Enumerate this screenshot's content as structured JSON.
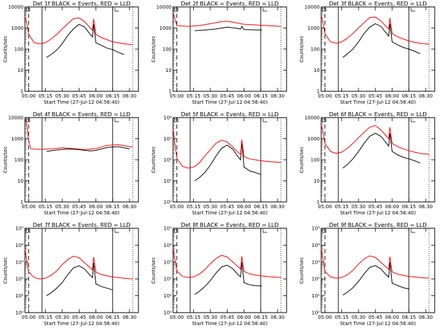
{
  "chart_data": [
    {
      "title": "Det 1f BLACK = Events, RED = LLD",
      "type": "line",
      "ylabel": "Counts/sec",
      "xlabel": "Start Time (27-Jul-12 04:56:40)",
      "x_ticks": [
        "05:00",
        "05:15",
        "05:30",
        "05:45",
        "06:00",
        "06:15",
        "06:30"
      ],
      "y_ticks": [
        "1",
        "10",
        "100",
        "1000",
        "10000"
      ],
      "ylim": [
        1,
        10000
      ],
      "yscale": "log",
      "xlim": [
        "04:56:40",
        "06:38"
      ],
      "series": [
        {
          "color": "#000000",
          "x": [
            "05:16",
            "05:20",
            "05:25",
            "05:30",
            "05:35",
            "05:40",
            "05:45",
            "05:50",
            "05:55",
            "05:57",
            "05:58",
            "06:00",
            "06:05",
            "06:10",
            "06:15",
            "06:20",
            "06:25"
          ],
          "values": [
            40,
            55,
            90,
            180,
            450,
            900,
            1500,
            1100,
            500,
            380,
            1500,
            200,
            150,
            110,
            95,
            70,
            55
          ]
        },
        {
          "color": "#ff0000",
          "x": [
            "04:56:40",
            "04:58",
            "05:00",
            "05:05",
            "05:10",
            "05:15",
            "05:20",
            "05:25",
            "05:30",
            "05:35",
            "05:40",
            "05:45",
            "05:50",
            "05:55",
            "05:57",
            "05:58",
            "06:00",
            "06:05",
            "06:10",
            "06:15",
            "06:20",
            "06:25",
            "06:33"
          ],
          "values": [
            3500,
            2000,
            500,
            200,
            180,
            200,
            300,
            500,
            900,
            1600,
            2800,
            3000,
            2000,
            1000,
            800,
            2700,
            500,
            350,
            280,
            220,
            200,
            180,
            160
          ]
        }
      ]
    },
    {
      "title": "Det 2f BLACK = Events, RED = LLD",
      "type": "line",
      "ylabel": "Counts/sec",
      "xlabel": "Start Time (27-Jul-12 04:56:40)",
      "x_ticks": [
        "05:00",
        "05:15",
        "05:30",
        "05:45",
        "06:00",
        "06:15",
        "06:30"
      ],
      "y_ticks": [
        "1",
        "10",
        "100",
        "1000",
        "10000"
      ],
      "ylim": [
        1,
        10000
      ],
      "yscale": "log",
      "xlim": [
        "04:56:40",
        "06:38"
      ],
      "series": [
        {
          "color": "#000000",
          "x": [
            "05:16",
            "05:25",
            "05:35",
            "05:45",
            "05:55",
            "05:57",
            "05:58",
            "06:00",
            "06:10",
            "06:16"
          ],
          "values": [
            750,
            800,
            900,
            1100,
            950,
            900,
            1200,
            850,
            820,
            800
          ]
        },
        {
          "color": "#ff0000",
          "x": [
            "04:56:40",
            "04:58",
            "05:00",
            "05:10",
            "05:20",
            "05:30",
            "05:40",
            "05:45",
            "05:50",
            "06:00",
            "06:10",
            "06:20",
            "06:33"
          ],
          "values": [
            5000,
            3000,
            1300,
            1200,
            1300,
            1600,
            2000,
            2100,
            1900,
            1500,
            1400,
            1300,
            1200
          ]
        }
      ]
    },
    {
      "title": "Det 3f BLACK = Events, RED = LLD",
      "type": "line",
      "ylabel": "Counts/sec",
      "xlabel": "Start Time (27-Jul-12 04:56:40)",
      "x_ticks": [
        "05:00",
        "05:15",
        "05:30",
        "05:45",
        "06:00",
        "06:15",
        "06:30"
      ],
      "y_ticks": [
        "1",
        "10",
        "100",
        "1000",
        "10000"
      ],
      "ylim": [
        1,
        10000
      ],
      "yscale": "log",
      "xlim": [
        "04:56:40",
        "06:38"
      ],
      "series": [
        {
          "color": "#000000",
          "x": [
            "05:16",
            "05:20",
            "05:25",
            "05:30",
            "05:35",
            "05:40",
            "05:45",
            "05:50",
            "05:55",
            "05:57",
            "05:58",
            "06:00",
            "06:05",
            "06:10",
            "06:15",
            "06:20",
            "06:25"
          ],
          "values": [
            40,
            60,
            100,
            220,
            550,
            1100,
            1600,
            1200,
            550,
            420,
            1600,
            220,
            160,
            120,
            100,
            80,
            60
          ]
        },
        {
          "color": "#ff0000",
          "x": [
            "04:56:40",
            "04:58",
            "05:00",
            "05:05",
            "05:10",
            "05:15",
            "05:20",
            "05:25",
            "05:30",
            "05:35",
            "05:40",
            "05:45",
            "05:50",
            "05:55",
            "05:57",
            "05:58",
            "06:00",
            "06:05",
            "06:10",
            "06:15",
            "06:20",
            "06:25",
            "06:33"
          ],
          "values": [
            4000,
            2200,
            550,
            220,
            190,
            220,
            330,
            550,
            1000,
            1800,
            3100,
            3300,
            2200,
            1100,
            900,
            3000,
            550,
            380,
            300,
            240,
            210,
            190,
            170
          ]
        }
      ]
    },
    {
      "title": "Det 4f BLACK = Events, RED = LLD",
      "type": "line",
      "ylabel": "Counts/sec",
      "xlabel": "Start Time (27-Jul-12 04:56:40)",
      "x_ticks": [
        "05:00",
        "05:15",
        "05:30",
        "05:45",
        "06:00",
        "06:15",
        "06:30"
      ],
      "y_ticks": [
        "1",
        "10",
        "100",
        "1000",
        "10000"
      ],
      "ylim": [
        1,
        10000
      ],
      "yscale": "log",
      "xlim": [
        "04:56:40",
        "06:38"
      ],
      "series": [
        {
          "color": "#000000",
          "x": [
            "05:16",
            "05:25",
            "05:35",
            "05:45",
            "05:55",
            "06:00",
            "06:10",
            "06:20",
            "06:30"
          ],
          "values": [
            250,
            290,
            330,
            300,
            260,
            280,
            380,
            420,
            330
          ]
        },
        {
          "color": "#ff0000",
          "x": [
            "04:56:40",
            "04:58",
            "05:00",
            "05:02",
            "05:10",
            "05:20",
            "05:30",
            "05:40",
            "05:50",
            "06:00",
            "06:10",
            "06:20",
            "06:33"
          ],
          "values": [
            9000,
            6000,
            800,
            330,
            310,
            330,
            370,
            340,
            300,
            340,
            480,
            520,
            400
          ]
        }
      ]
    },
    {
      "title": "Det 5f BLACK = Events, RED = LLD",
      "type": "line",
      "ylabel": "Counts/sec",
      "xlabel": "Start Time (27-Jul-12 04:56:40)",
      "x_ticks": [
        "05:00",
        "05:15",
        "05:30",
        "05:45",
        "06:00",
        "06:15",
        "06:30"
      ],
      "y_ticks": [
        "10⁰",
        "10¹",
        "10²",
        "10³",
        "10⁴"
      ],
      "ylim": [
        1,
        10000
      ],
      "yscale": "log",
      "xlim": [
        "04:56:40",
        "06:38"
      ],
      "series": [
        {
          "color": "#000000",
          "x": [
            "05:16",
            "05:20",
            "05:25",
            "05:30",
            "05:35",
            "05:40",
            "05:45",
            "05:50",
            "05:55",
            "05:57",
            "05:58",
            "06:00",
            "06:05",
            "06:10",
            "06:15"
          ],
          "values": [
            10,
            14,
            25,
            55,
            150,
            350,
            500,
            320,
            130,
            100,
            700,
            45,
            30,
            25,
            20
          ]
        },
        {
          "color": "#ff0000",
          "x": [
            "04:56:40",
            "04:58",
            "05:00",
            "05:05",
            "05:10",
            "05:15",
            "05:20",
            "05:25",
            "05:30",
            "05:35",
            "05:40",
            "05:45",
            "05:50",
            "05:55",
            "05:57",
            "05:58",
            "06:00",
            "06:05",
            "06:10",
            "06:15",
            "06:20",
            "06:25",
            "06:33"
          ],
          "values": [
            3000,
            800,
            120,
            50,
            40,
            45,
            70,
            150,
            300,
            600,
            850,
            700,
            400,
            220,
            180,
            900,
            140,
            110,
            100,
            90,
            85,
            80,
            75
          ]
        }
      ]
    },
    {
      "title": "Det 6f BLACK = Events, RED = LLD",
      "type": "line",
      "ylabel": "Counts/sec",
      "xlabel": "Start Time (27-Jul-12 04:56:40)",
      "x_ticks": [
        "05:00",
        "05:15",
        "05:30",
        "05:45",
        "06:00",
        "06:15",
        "06:30"
      ],
      "y_ticks": [
        "1",
        "10",
        "100",
        "1000",
        "10000"
      ],
      "ylim": [
        1,
        10000
      ],
      "yscale": "log",
      "xlim": [
        "04:56:40",
        "06:38"
      ],
      "series": [
        {
          "color": "#000000",
          "x": [
            "05:16",
            "05:20",
            "05:25",
            "05:30",
            "05:35",
            "05:40",
            "05:45",
            "05:50",
            "05:55",
            "05:57",
            "05:58",
            "06:00",
            "06:05",
            "06:10",
            "06:15",
            "06:20",
            "06:25"
          ],
          "values": [
            40,
            60,
            110,
            250,
            600,
            1300,
            1800,
            1300,
            600,
            450,
            1800,
            250,
            170,
            130,
            110,
            90,
            70
          ]
        },
        {
          "color": "#ff0000",
          "x": [
            "04:56:40",
            "04:58",
            "05:00",
            "05:05",
            "05:10",
            "05:15",
            "05:20",
            "05:25",
            "05:30",
            "05:35",
            "05:40",
            "05:45",
            "05:50",
            "05:55",
            "05:57",
            "05:58",
            "06:00",
            "06:05",
            "06:10",
            "06:15",
            "06:20",
            "06:25",
            "06:33"
          ],
          "values": [
            4500,
            2500,
            600,
            250,
            200,
            230,
            350,
            600,
            1100,
            2000,
            3500,
            4200,
            2600,
            1300,
            1000,
            3500,
            600,
            420,
            330,
            270,
            230,
            200,
            180
          ]
        }
      ]
    },
    {
      "title": "Det 7f BLACK = Events, RED = LLD",
      "type": "line",
      "ylabel": "Counts/sec",
      "xlabel": "Start Time (27-Jul-12 04:56:40)",
      "x_ticks": [
        "05:00",
        "05:15",
        "05:30",
        "05:45",
        "06:00",
        "06:15",
        "06:30"
      ],
      "y_ticks": [
        "10⁰",
        "10¹",
        "10²",
        "10³",
        "10⁴",
        "10⁵"
      ],
      "ylim": [
        1,
        100000
      ],
      "yscale": "log",
      "xlim": [
        "04:56:40",
        "06:38"
      ],
      "series": [
        {
          "color": "#000000",
          "x": [
            "05:16",
            "05:20",
            "05:25",
            "05:30",
            "05:35",
            "05:40",
            "05:45",
            "05:50",
            "05:55",
            "05:57",
            "05:58",
            "06:00",
            "06:05",
            "06:10",
            "06:15"
          ],
          "values": [
            10,
            15,
            28,
            60,
            180,
            450,
            600,
            380,
            160,
            120,
            900,
            50,
            35,
            28,
            22
          ]
        },
        {
          "color": "#ff0000",
          "x": [
            "04:56:40",
            "04:58",
            "05:00",
            "05:05",
            "05:10",
            "05:15",
            "05:20",
            "05:25",
            "05:30",
            "05:35",
            "05:40",
            "05:45",
            "05:50",
            "05:55",
            "05:57",
            "05:58",
            "06:00",
            "06:05",
            "06:10",
            "06:15",
            "06:20",
            "06:25",
            "06:33"
          ],
          "values": [
            6000,
            1500,
            250,
            120,
            100,
            110,
            160,
            300,
            700,
            1400,
            2200,
            1800,
            900,
            450,
            350,
            2000,
            250,
            180,
            150,
            130,
            120,
            110,
            100
          ]
        }
      ]
    },
    {
      "title": "Det 8f BLACK = Events, RED = LLD",
      "type": "line",
      "ylabel": "Counts/sec",
      "xlabel": "Start Time (27-Jul-12 04:56:40)",
      "x_ticks": [
        "05:00",
        "05:15",
        "05:30",
        "05:45",
        "06:00",
        "06:15",
        "06:30"
      ],
      "y_ticks": [
        "10⁰",
        "10¹",
        "10²",
        "10³",
        "10⁴",
        "10⁵"
      ],
      "ylim": [
        1,
        100000
      ],
      "yscale": "log",
      "xlim": [
        "04:56:40",
        "06:38"
      ],
      "series": [
        {
          "color": "#000000",
          "x": [
            "05:16",
            "05:20",
            "05:25",
            "05:30",
            "05:35",
            "05:40",
            "05:45",
            "05:50",
            "05:55",
            "05:57",
            "05:58",
            "06:00",
            "06:05",
            "06:10",
            "06:16"
          ],
          "values": [
            12,
            18,
            35,
            80,
            220,
            500,
            650,
            400,
            170,
            130,
            1000,
            60,
            45,
            40,
            38
          ]
        },
        {
          "color": "#ff0000",
          "x": [
            "04:56:40",
            "04:58",
            "05:00",
            "05:05",
            "05:10",
            "05:15",
            "05:20",
            "05:25",
            "05:30",
            "05:35",
            "05:40",
            "05:45",
            "05:50",
            "05:55",
            "05:57",
            "05:58",
            "06:00",
            "06:05",
            "06:10",
            "06:15",
            "06:20",
            "06:25",
            "06:33"
          ],
          "values": [
            7000,
            1800,
            300,
            140,
            120,
            130,
            190,
            350,
            800,
            1600,
            2500,
            2000,
            1000,
            500,
            380,
            2200,
            280,
            200,
            170,
            150,
            140,
            130,
            120
          ]
        }
      ]
    },
    {
      "title": "Det 9f BLACK = Events, RED = LLD",
      "type": "line",
      "ylabel": "Counts/sec",
      "xlabel": "Start Time (27-Jul-12 04:56:40)",
      "x_ticks": [
        "05:00",
        "05:15",
        "05:30",
        "05:45",
        "06:00",
        "06:15",
        "06:30"
      ],
      "y_ticks": [
        "10⁰",
        "10¹",
        "10²",
        "10³",
        "10⁴",
        "10⁵"
      ],
      "ylim": [
        1,
        100000
      ],
      "yscale": "log",
      "xlim": [
        "04:56:40",
        "06:38"
      ],
      "series": [
        {
          "color": "#000000",
          "x": [
            "05:16",
            "05:20",
            "05:25",
            "05:30",
            "05:35",
            "05:40",
            "05:45",
            "05:50",
            "05:55",
            "05:57",
            "05:58",
            "06:00",
            "06:05",
            "06:10",
            "06:15"
          ],
          "values": [
            11,
            16,
            30,
            70,
            200,
            480,
            620,
            390,
            165,
            125,
            950,
            55,
            40,
            30,
            25
          ]
        },
        {
          "color": "#ff0000",
          "x": [
            "04:56:40",
            "04:58",
            "05:00",
            "05:05",
            "05:10",
            "05:15",
            "05:20",
            "05:25",
            "05:30",
            "05:35",
            "05:40",
            "05:45",
            "05:50",
            "05:55",
            "05:57",
            "05:58",
            "06:00",
            "06:05",
            "06:10",
            "06:15",
            "06:20",
            "06:25",
            "06:33"
          ],
          "values": [
            6500,
            1600,
            280,
            130,
            110,
            120,
            175,
            320,
            750,
            1500,
            2300,
            1900,
            950,
            480,
            360,
            2100,
            260,
            190,
            160,
            140,
            130,
            120,
            110
          ]
        }
      ]
    }
  ]
}
